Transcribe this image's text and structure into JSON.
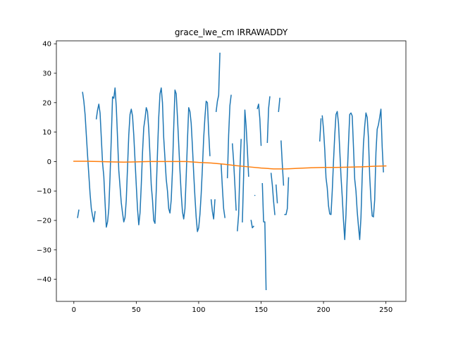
{
  "chart_data": {
    "type": "line",
    "title": "grace_lwe_cm IRRAWADDY",
    "xlabel": "",
    "ylabel": "",
    "xlim": [
      -14,
      266
    ],
    "ylim": [
      -47.5,
      41
    ],
    "x_ticks": [
      0,
      50,
      100,
      150,
      200,
      250
    ],
    "y_ticks": [
      -40,
      -30,
      -20,
      -10,
      0,
      10,
      20,
      30,
      40
    ],
    "grid": false,
    "legend": "none",
    "series": [
      {
        "color": "#1f77b4",
        "segments": [
          [
            [
              3,
              -19
            ],
            [
              4,
              -16.5
            ]
          ],
          [
            [
              7,
              23.5
            ],
            [
              8,
              20.5
            ],
            [
              9,
              16
            ],
            [
              10,
              9
            ],
            [
              11,
              2
            ],
            [
              12,
              -4.5
            ],
            [
              13,
              -11
            ],
            [
              14,
              -16
            ],
            [
              15,
              -18.5
            ],
            [
              16,
              -20.5
            ],
            [
              17,
              -17
            ]
          ],
          [
            [
              18,
              14.5
            ],
            [
              19,
              17.5
            ],
            [
              20,
              19.5
            ],
            [
              21,
              16.5
            ],
            [
              22,
              8
            ],
            [
              23,
              -0.5
            ],
            [
              24,
              -5
            ],
            [
              25,
              -14
            ],
            [
              26,
              -22.3
            ],
            [
              27,
              -20.5
            ],
            [
              28,
              -16
            ],
            [
              29,
              -5
            ],
            [
              30,
              8
            ],
            [
              31,
              22
            ],
            [
              32,
              21.5
            ],
            [
              33,
              25
            ],
            [
              34,
              18.5
            ],
            [
              35,
              8
            ],
            [
              36,
              -3
            ],
            [
              37,
              -8.5
            ],
            [
              38,
              -14
            ],
            [
              39,
              -17.5
            ],
            [
              40,
              -20.5
            ],
            [
              41,
              -19
            ],
            [
              42,
              -13
            ],
            [
              43,
              -2
            ],
            [
              44,
              9
            ],
            [
              45,
              16
            ],
            [
              46,
              17.8
            ],
            [
              47,
              15.5
            ],
            [
              48,
              9
            ],
            [
              49,
              0.5
            ],
            [
              50,
              -8
            ],
            [
              51,
              -16
            ],
            [
              52,
              -21.5
            ],
            [
              53,
              -17.5
            ],
            [
              54,
              -8
            ],
            [
              55,
              3
            ],
            [
              56,
              11.5
            ],
            [
              57,
              14.5
            ],
            [
              58,
              18.3
            ],
            [
              59,
              17
            ],
            [
              60,
              11
            ],
            [
              61,
              2
            ],
            [
              62,
              -8
            ],
            [
              63,
              -13
            ],
            [
              64,
              -20
            ],
            [
              65,
              -21
            ],
            [
              66,
              -10
            ],
            [
              67,
              3
            ],
            [
              68,
              15
            ],
            [
              69,
              23
            ],
            [
              70,
              25
            ],
            [
              71,
              20
            ],
            [
              72,
              8
            ],
            [
              73,
              1
            ],
            [
              74,
              -6
            ],
            [
              75,
              -10
            ],
            [
              76,
              -16
            ],
            [
              77,
              -17.5
            ],
            [
              78,
              -13
            ],
            [
              79,
              -3
            ],
            [
              80,
              11.5
            ],
            [
              81,
              24.3
            ],
            [
              82,
              23
            ],
            [
              83,
              15
            ],
            [
              84,
              6
            ],
            [
              85,
              -3
            ],
            [
              86,
              -11
            ],
            [
              87,
              -17
            ],
            [
              88,
              -19.5
            ],
            [
              89,
              -16
            ],
            [
              90,
              -5
            ],
            [
              91,
              7
            ],
            [
              92,
              18.3
            ],
            [
              93,
              17
            ],
            [
              94,
              13
            ],
            [
              95,
              5
            ],
            [
              96,
              -4
            ],
            [
              97,
              -12
            ],
            [
              98,
              -19
            ],
            [
              99,
              -23.8
            ],
            [
              100,
              -22.5
            ],
            [
              101,
              -18
            ],
            [
              102,
              -11
            ],
            [
              103,
              -2
            ],
            [
              104,
              8
            ],
            [
              105,
              15
            ],
            [
              106,
              20.5
            ],
            [
              107,
              20
            ],
            [
              108,
              10
            ],
            [
              109,
              2
            ]
          ],
          [
            [
              110,
              -13
            ],
            [
              111,
              -17
            ],
            [
              112,
              -19.5
            ],
            [
              113,
              -13
            ]
          ],
          [
            [
              114,
              17
            ],
            [
              115,
              20.5
            ],
            [
              116,
              22.5
            ],
            [
              117,
              36.8
            ]
          ],
          [
            [
              118,
              -1
            ],
            [
              119,
              -9
            ],
            [
              120,
              -16
            ],
            [
              121,
              -19
            ]
          ],
          [
            [
              123,
              -5.5
            ],
            [
              124,
              9
            ],
            [
              125,
              19
            ],
            [
              126,
              22.5
            ]
          ],
          [
            [
              127,
              6
            ],
            [
              128,
              0
            ],
            [
              129,
              -8
            ],
            [
              130,
              -16.5
            ]
          ],
          [
            [
              131,
              -23.5
            ],
            [
              132,
              -18
            ],
            [
              133,
              -3
            ],
            [
              134,
              7.5
            ]
          ],
          [
            [
              135,
              -20.5
            ],
            [
              136,
              -5
            ],
            [
              137,
              17.5
            ],
            [
              138,
              12
            ],
            [
              139,
              4
            ],
            [
              140,
              -5
            ]
          ],
          [
            [
              142,
              -20
            ],
            [
              143,
              -22.5
            ],
            [
              144,
              -22
            ]
          ],
          [
            [
              145,
              -11.5
            ]
          ],
          [
            [
              147,
              18
            ],
            [
              148,
              19.5
            ],
            [
              149,
              14.5
            ],
            [
              150,
              5.5
            ]
          ],
          [
            [
              151,
              -7.5
            ],
            [
              152,
              -20.5
            ],
            [
              153,
              -20.5
            ],
            [
              154,
              -43.5
            ]
          ],
          [
            [
              155,
              6.5
            ],
            [
              156,
              18
            ],
            [
              157,
              22
            ]
          ],
          [
            [
              158,
              -4
            ],
            [
              159,
              -8
            ],
            [
              160,
              -13.5
            ],
            [
              161,
              -18
            ]
          ],
          [
            [
              162,
              -8
            ],
            [
              163,
              -14
            ]
          ],
          [
            [
              164,
              17
            ],
            [
              165,
              21.5
            ]
          ],
          [
            [
              166,
              7
            ],
            [
              167,
              -1
            ],
            [
              168,
              -8
            ]
          ],
          [
            [
              169,
              -18
            ],
            [
              170,
              -18
            ],
            [
              171,
              -16
            ],
            [
              172,
              -5.5
            ]
          ],
          [
            [
              197,
              7
            ],
            [
              198,
              14.5
            ]
          ],
          [
            [
              199,
              15.5
            ],
            [
              200,
              11
            ],
            [
              201,
              4
            ],
            [
              202,
              -5.5
            ],
            [
              203,
              -9
            ],
            [
              204,
              -15
            ],
            [
              205,
              -17.8
            ],
            [
              206,
              -18
            ],
            [
              207,
              -10
            ],
            [
              208,
              0
            ],
            [
              209,
              9
            ],
            [
              210,
              16
            ],
            [
              211,
              17
            ],
            [
              212,
              13
            ],
            [
              213,
              4
            ],
            [
              214,
              -5
            ],
            [
              215,
              -12
            ],
            [
              216,
              -20
            ],
            [
              217,
              -26.5
            ],
            [
              218,
              -18
            ],
            [
              219,
              -5
            ],
            [
              220,
              6
            ],
            [
              221,
              16
            ],
            [
              222,
              16.5
            ],
            [
              223,
              15.5
            ],
            [
              224,
              5
            ],
            [
              225,
              -6
            ],
            [
              226,
              -10
            ],
            [
              227,
              -17
            ],
            [
              228,
              -22
            ],
            [
              229,
              -26.5
            ],
            [
              230,
              -19
            ],
            [
              231,
              -5
            ],
            [
              232,
              6
            ],
            [
              233,
              12
            ],
            [
              234,
              16.5
            ],
            [
              235,
              15
            ],
            [
              236,
              8
            ],
            [
              237,
              -5
            ],
            [
              238,
              -13
            ],
            [
              239,
              -18.5
            ],
            [
              240,
              -18.8
            ],
            [
              241,
              -13
            ],
            [
              242,
              3
            ],
            [
              243,
              11
            ],
            [
              244,
              12.5
            ],
            [
              245,
              15
            ],
            [
              246,
              17.8
            ],
            [
              247,
              5
            ],
            [
              248,
              -3.5
            ]
          ]
        ]
      },
      {
        "color": "#ff7f0e",
        "points": [
          [
            0,
            0.1
          ],
          [
            10,
            0.1
          ],
          [
            20,
            0
          ],
          [
            30,
            -0.1
          ],
          [
            40,
            -0.2
          ],
          [
            50,
            -0.1
          ],
          [
            60,
            0
          ],
          [
            70,
            0
          ],
          [
            80,
            0
          ],
          [
            90,
            0
          ],
          [
            100,
            -0.3
          ],
          [
            110,
            -0.5
          ],
          [
            120,
            -0.9
          ],
          [
            130,
            -1.4
          ],
          [
            140,
            -1.8
          ],
          [
            150,
            -2.2
          ],
          [
            160,
            -2.5
          ],
          [
            170,
            -2.5
          ],
          [
            180,
            -2.3
          ],
          [
            190,
            -2.1
          ],
          [
            200,
            -2
          ],
          [
            210,
            -2
          ],
          [
            220,
            -1.9
          ],
          [
            230,
            -1.8
          ],
          [
            240,
            -1.6
          ],
          [
            250,
            -1.5
          ]
        ]
      }
    ]
  }
}
